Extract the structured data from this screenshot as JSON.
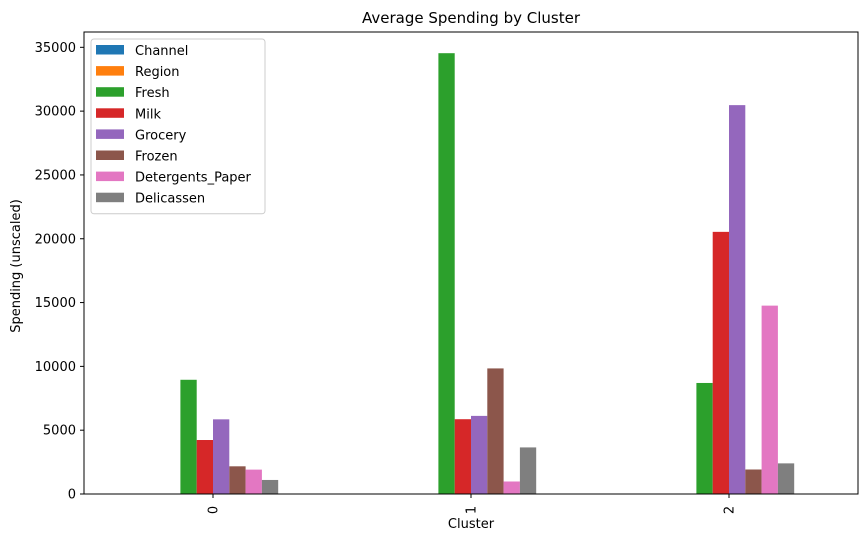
{
  "chart_data": {
    "type": "bar",
    "title": "Average Spending by Cluster",
    "xlabel": "Cluster",
    "ylabel": "Spending (unscaled)",
    "categories": [
      "0",
      "1",
      "2"
    ],
    "ylim": [
      0,
      36200
    ],
    "yticks": [
      0,
      5000,
      10000,
      15000,
      20000,
      25000,
      30000,
      35000
    ],
    "grid": false,
    "legend_position": "top-left",
    "series": [
      {
        "name": "Channel",
        "color": "#1f77b4",
        "values": [
          1.0,
          1.1,
          2.0
        ]
      },
      {
        "name": "Region",
        "color": "#ff7f0e",
        "values": [
          2.5,
          2.6,
          2.6
        ]
      },
      {
        "name": "Fresh",
        "color": "#2ca02c",
        "values": [
          8950,
          34540,
          8700
        ]
      },
      {
        "name": "Milk",
        "color": "#d62728",
        "values": [
          4230,
          5860,
          20540
        ]
      },
      {
        "name": "Grocery",
        "color": "#9467bd",
        "values": [
          5850,
          6120,
          30470
        ]
      },
      {
        "name": "Frozen",
        "color": "#8c564b",
        "values": [
          2170,
          9840,
          1920
        ]
      },
      {
        "name": "Detergents_Paper",
        "color": "#e377c2",
        "values": [
          1910,
          980,
          14760
        ]
      },
      {
        "name": "Delicassen",
        "color": "#7f7f7f",
        "values": [
          1100,
          3650,
          2400
        ]
      }
    ]
  }
}
